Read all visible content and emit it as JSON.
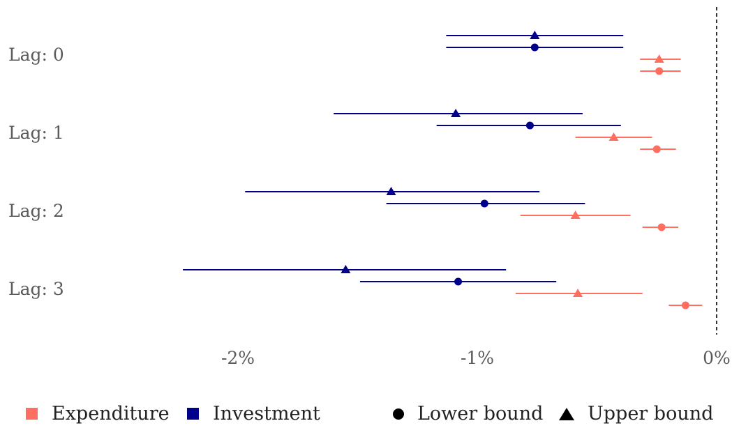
{
  "chart_data": {
    "type": "errorbar",
    "x_ticks": [
      -2,
      -1,
      0
    ],
    "x_tick_labels": [
      "-2%",
      "-1%",
      "0%"
    ],
    "xlim": [
      -2.9,
      0.07
    ],
    "reference_line_x": 0,
    "categories": [
      "Lag: 0",
      "Lag: 1",
      "Lag: 2",
      "Lag: 3"
    ],
    "series": [
      {
        "name": "Investment",
        "bound": "Upper bound",
        "color": "#00008b",
        "marker": "triangle",
        "values": [
          {
            "category": "Lag: 0",
            "estimate": -0.76,
            "low": -1.13,
            "high": -0.39
          },
          {
            "category": "Lag: 1",
            "estimate": -1.09,
            "low": -1.6,
            "high": -0.56
          },
          {
            "category": "Lag: 2",
            "estimate": -1.36,
            "low": -1.97,
            "high": -0.74
          },
          {
            "category": "Lag: 3",
            "estimate": -1.55,
            "low": -2.23,
            "high": -0.88
          }
        ]
      },
      {
        "name": "Investment",
        "bound": "Lower bound",
        "color": "#00008b",
        "marker": "circle",
        "values": [
          {
            "category": "Lag: 0",
            "estimate": -0.76,
            "low": -1.13,
            "high": -0.39
          },
          {
            "category": "Lag: 1",
            "estimate": -0.78,
            "low": -1.17,
            "high": -0.4
          },
          {
            "category": "Lag: 2",
            "estimate": -0.97,
            "low": -1.38,
            "high": -0.55
          },
          {
            "category": "Lag: 3",
            "estimate": -1.08,
            "low": -1.49,
            "high": -0.67
          }
        ]
      },
      {
        "name": "Expenditure",
        "bound": "Upper bound",
        "color": "#ff6e5e",
        "marker": "triangle",
        "values": [
          {
            "category": "Lag: 0",
            "estimate": -0.24,
            "low": -0.32,
            "high": -0.15
          },
          {
            "category": "Lag: 1",
            "estimate": -0.43,
            "low": -0.59,
            "high": -0.27
          },
          {
            "category": "Lag: 2",
            "estimate": -0.59,
            "low": -0.82,
            "high": -0.36
          },
          {
            "category": "Lag: 3",
            "estimate": -0.58,
            "low": -0.84,
            "high": -0.31
          }
        ]
      },
      {
        "name": "Expenditure",
        "bound": "Lower bound",
        "color": "#ff6e5e",
        "marker": "circle",
        "values": [
          {
            "category": "Lag: 0",
            "estimate": -0.24,
            "low": -0.32,
            "high": -0.15
          },
          {
            "category": "Lag: 1",
            "estimate": -0.25,
            "low": -0.32,
            "high": -0.17
          },
          {
            "category": "Lag: 2",
            "estimate": -0.23,
            "low": -0.31,
            "high": -0.16
          },
          {
            "category": "Lag: 3",
            "estimate": -0.13,
            "low": -0.2,
            "high": -0.06
          }
        ]
      }
    ],
    "legend": {
      "placement": "bottom",
      "items": [
        {
          "label": "Expenditure",
          "kind": "color",
          "color": "#ff6e5e"
        },
        {
          "label": "Investment",
          "kind": "color",
          "color": "#00008b"
        },
        {
          "label": "Lower bound",
          "kind": "shape",
          "shape": "circle"
        },
        {
          "label": "Upper bound",
          "kind": "shape",
          "shape": "triangle"
        }
      ]
    },
    "grid": false
  }
}
